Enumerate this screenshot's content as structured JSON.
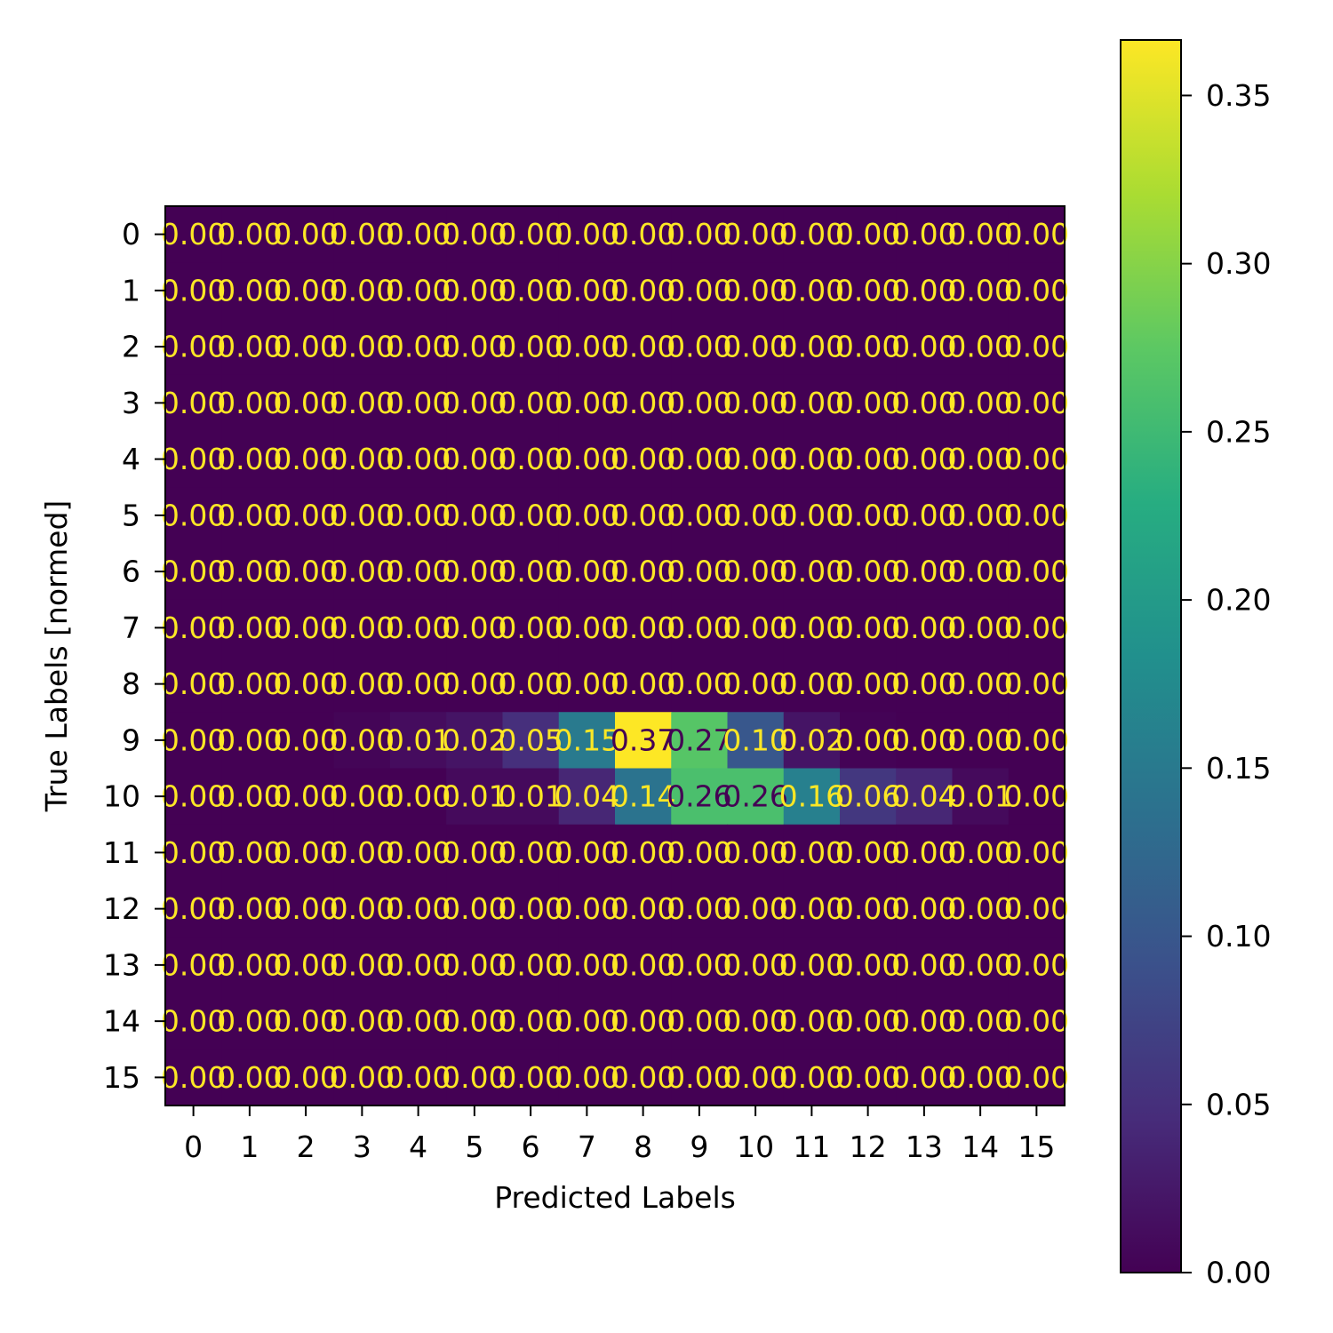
{
  "chart_data": {
    "type": "heatmap",
    "xlabel": "Predicted Labels",
    "ylabel": "True Labels [normed]",
    "x_categories": [
      "0",
      "1",
      "2",
      "3",
      "4",
      "5",
      "6",
      "7",
      "8",
      "9",
      "10",
      "11",
      "12",
      "13",
      "14",
      "15"
    ],
    "y_categories": [
      "0",
      "1",
      "2",
      "3",
      "4",
      "5",
      "6",
      "7",
      "8",
      "9",
      "10",
      "11",
      "12",
      "13",
      "14",
      "15"
    ],
    "values": [
      [
        0,
        0,
        0,
        0,
        0,
        0,
        0,
        0,
        0,
        0,
        0,
        0,
        0,
        0,
        0,
        0
      ],
      [
        0,
        0,
        0,
        0,
        0,
        0,
        0,
        0,
        0,
        0,
        0,
        0,
        0,
        0,
        0,
        0
      ],
      [
        0,
        0,
        0,
        0,
        0,
        0,
        0,
        0,
        0,
        0,
        0,
        0,
        0,
        0,
        0,
        0
      ],
      [
        0,
        0,
        0,
        0,
        0,
        0,
        0,
        0,
        0,
        0,
        0,
        0,
        0,
        0,
        0,
        0
      ],
      [
        0,
        0,
        0,
        0,
        0,
        0,
        0,
        0,
        0,
        0,
        0,
        0,
        0,
        0,
        0,
        0
      ],
      [
        0,
        0,
        0,
        0,
        0,
        0,
        0,
        0,
        0,
        0,
        0,
        0,
        0,
        0,
        0,
        0
      ],
      [
        0,
        0,
        0,
        0,
        0,
        0,
        0,
        0,
        0,
        0,
        0,
        0,
        0,
        0,
        0,
        0
      ],
      [
        0,
        0,
        0,
        0,
        0,
        0,
        0,
        0,
        0,
        0,
        0,
        0,
        0,
        0,
        0,
        0
      ],
      [
        0,
        0,
        0,
        0,
        0,
        0,
        0,
        0,
        0,
        0,
        0,
        0,
        0,
        0,
        0,
        0
      ],
      [
        0,
        0,
        0,
        0.004,
        0.012,
        0.02,
        0.05,
        0.15,
        0.37,
        0.27,
        0.1,
        0.02,
        0.002,
        0,
        0,
        0
      ],
      [
        0,
        0,
        0,
        0,
        0,
        0.01,
        0.01,
        0.04,
        0.14,
        0.26,
        0.26,
        0.16,
        0.06,
        0.04,
        0.01,
        0
      ],
      [
        0,
        0,
        0,
        0,
        0,
        0,
        0,
        0,
        0,
        0,
        0,
        0,
        0,
        0,
        0,
        0
      ],
      [
        0,
        0,
        0,
        0,
        0,
        0,
        0,
        0,
        0,
        0,
        0,
        0,
        0,
        0,
        0,
        0
      ],
      [
        0,
        0,
        0,
        0,
        0,
        0,
        0,
        0,
        0,
        0,
        0,
        0,
        0,
        0,
        0,
        0
      ],
      [
        0,
        0,
        0,
        0,
        0,
        0,
        0,
        0,
        0,
        0,
        0,
        0,
        0,
        0,
        0,
        0
      ],
      [
        0,
        0,
        0,
        0,
        0,
        0,
        0,
        0,
        0,
        0,
        0,
        0,
        0,
        0,
        0,
        0
      ]
    ],
    "cell_labels": [
      [
        "0.00",
        "0.00",
        "0.00",
        "0.00",
        "0.00",
        "0.00",
        "0.00",
        "0.00",
        "0.00",
        "0.00",
        "0.00",
        "0.00",
        "0.00",
        "0.00",
        "0.00",
        "0.00"
      ],
      [
        "0.00",
        "0.00",
        "0.00",
        "0.00",
        "0.00",
        "0.00",
        "0.00",
        "0.00",
        "0.00",
        "0.00",
        "0.00",
        "0.00",
        "0.00",
        "0.00",
        "0.00",
        "0.00"
      ],
      [
        "0.00",
        "0.00",
        "0.00",
        "0.00",
        "0.00",
        "0.00",
        "0.00",
        "0.00",
        "0.00",
        "0.00",
        "0.00",
        "0.00",
        "0.00",
        "0.00",
        "0.00",
        "0.00"
      ],
      [
        "0.00",
        "0.00",
        "0.00",
        "0.00",
        "0.00",
        "0.00",
        "0.00",
        "0.00",
        "0.00",
        "0.00",
        "0.00",
        "0.00",
        "0.00",
        "0.00",
        "0.00",
        "0.00"
      ],
      [
        "0.00",
        "0.00",
        "0.00",
        "0.00",
        "0.00",
        "0.00",
        "0.00",
        "0.00",
        "0.00",
        "0.00",
        "0.00",
        "0.00",
        "0.00",
        "0.00",
        "0.00",
        "0.00"
      ],
      [
        "0.00",
        "0.00",
        "0.00",
        "0.00",
        "0.00",
        "0.00",
        "0.00",
        "0.00",
        "0.00",
        "0.00",
        "0.00",
        "0.00",
        "0.00",
        "0.00",
        "0.00",
        "0.00"
      ],
      [
        "0.00",
        "0.00",
        "0.00",
        "0.00",
        "0.00",
        "0.00",
        "0.00",
        "0.00",
        "0.00",
        "0.00",
        "0.00",
        "0.00",
        "0.00",
        "0.00",
        "0.00",
        "0.00"
      ],
      [
        "0.00",
        "0.00",
        "0.00",
        "0.00",
        "0.00",
        "0.00",
        "0.00",
        "0.00",
        "0.00",
        "0.00",
        "0.00",
        "0.00",
        "0.00",
        "0.00",
        "0.00",
        "0.00"
      ],
      [
        "0.00",
        "0.00",
        "0.00",
        "0.00",
        "0.00",
        "0.00",
        "0.00",
        "0.00",
        "0.00",
        "0.00",
        "0.00",
        "0.00",
        "0.00",
        "0.00",
        "0.00",
        "0.00"
      ],
      [
        "0.00",
        "0.00",
        "0.00",
        "0.00",
        "0.01",
        "0.02",
        "0.05",
        "0.15",
        "0.37",
        "0.27",
        "0.10",
        "0.02",
        "0.00",
        "0.00",
        "0.00",
        "0.00"
      ],
      [
        "0.00",
        "0.00",
        "0.00",
        "0.00",
        "0.00",
        "0.01",
        "0.01",
        "0.04",
        "0.14",
        "0.26",
        "0.26",
        "0.16",
        "0.06",
        "0.04",
        "0.01",
        "0.00"
      ],
      [
        "0.00",
        "0.00",
        "0.00",
        "0.00",
        "0.00",
        "0.00",
        "0.00",
        "0.00",
        "0.00",
        "0.00",
        "0.00",
        "0.00",
        "0.00",
        "0.00",
        "0.00",
        "0.00"
      ],
      [
        "0.00",
        "0.00",
        "0.00",
        "0.00",
        "0.00",
        "0.00",
        "0.00",
        "0.00",
        "0.00",
        "0.00",
        "0.00",
        "0.00",
        "0.00",
        "0.00",
        "0.00",
        "0.00"
      ],
      [
        "0.00",
        "0.00",
        "0.00",
        "0.00",
        "0.00",
        "0.00",
        "0.00",
        "0.00",
        "0.00",
        "0.00",
        "0.00",
        "0.00",
        "0.00",
        "0.00",
        "0.00",
        "0.00"
      ],
      [
        "0.00",
        "0.00",
        "0.00",
        "0.00",
        "0.00",
        "0.00",
        "0.00",
        "0.00",
        "0.00",
        "0.00",
        "0.00",
        "0.00",
        "0.00",
        "0.00",
        "0.00",
        "0.00"
      ],
      [
        "0.00",
        "0.00",
        "0.00",
        "0.00",
        "0.00",
        "0.00",
        "0.00",
        "0.00",
        "0.00",
        "0.00",
        "0.00",
        "0.00",
        "0.00",
        "0.00",
        "0.00",
        "0.00"
      ]
    ],
    "colorbar": {
      "colormap": "viridis",
      "range": [
        0,
        0.3665
      ],
      "ticks": [
        0.0,
        0.05,
        0.1,
        0.15,
        0.2,
        0.25,
        0.3,
        0.35
      ],
      "tick_labels": [
        "0.00",
        "0.05",
        "0.10",
        "0.15",
        "0.20",
        "0.25",
        "0.30",
        "0.35"
      ]
    },
    "grid": false,
    "label_colors": {
      "on_dark": "#fde725",
      "on_light": "#440154"
    }
  }
}
